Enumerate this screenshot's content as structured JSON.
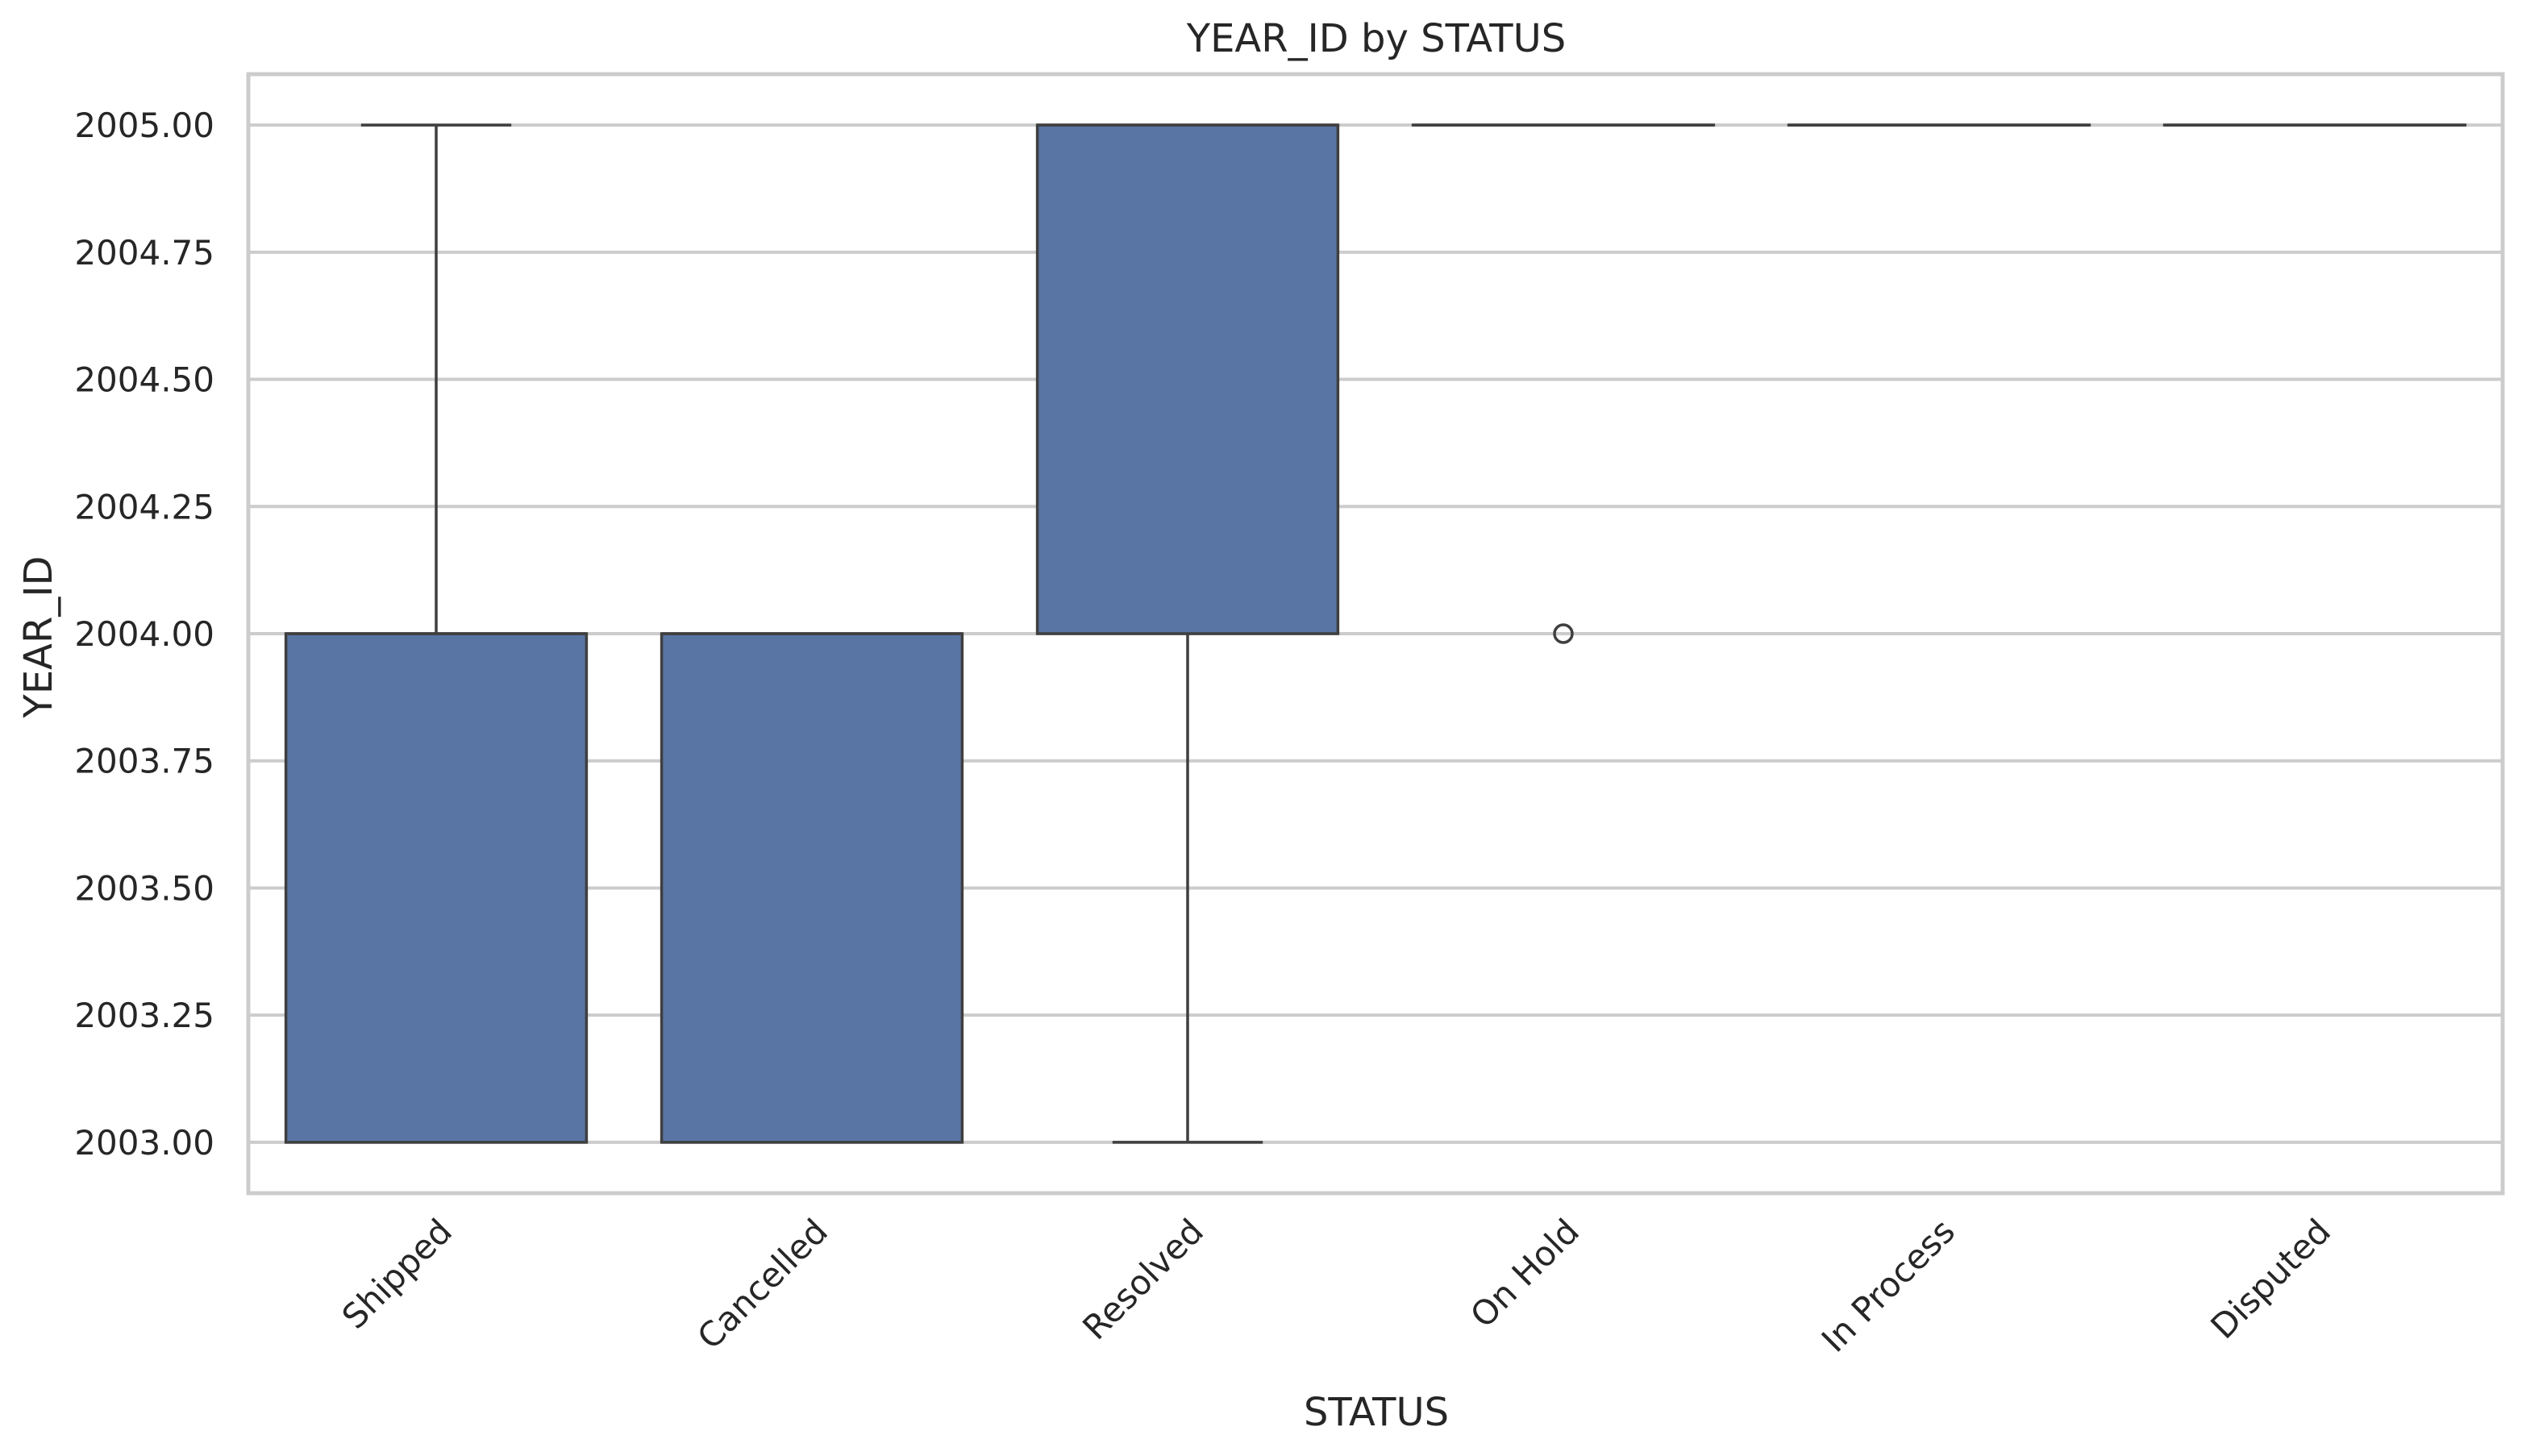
{
  "chart_data": {
    "type": "box",
    "title": "YEAR_ID by STATUS",
    "xlabel": "STATUS",
    "ylabel": "YEAR_ID",
    "ylim": [
      2002.9,
      2005.1
    ],
    "y_ticks": [
      "2003.00",
      "2003.25",
      "2003.50",
      "2003.75",
      "2004.00",
      "2004.25",
      "2004.50",
      "2004.75",
      "2005.00"
    ],
    "grid": "horizontal",
    "box_color": "#5975a4",
    "edge_color": "#3f3f3f",
    "categories": [
      "Shipped",
      "Cancelled",
      "Resolved",
      "On Hold",
      "In Process",
      "Disputed"
    ],
    "boxes": [
      {
        "whisker_low": 2003,
        "q1": 2003,
        "median": 2004,
        "q3": 2004,
        "whisker_high": 2005,
        "outliers": []
      },
      {
        "whisker_low": 2003,
        "q1": 2003,
        "median": 2004,
        "q3": 2004,
        "whisker_high": 2004,
        "outliers": []
      },
      {
        "whisker_low": 2003,
        "q1": 2004,
        "median": 2005,
        "q3": 2005,
        "whisker_high": 2005,
        "outliers": []
      },
      {
        "whisker_low": 2005,
        "q1": 2005,
        "median": 2005,
        "q3": 2005,
        "whisker_high": 2005,
        "outliers": [
          2004
        ]
      },
      {
        "whisker_low": 2005,
        "q1": 2005,
        "median": 2005,
        "q3": 2005,
        "whisker_high": 2005,
        "outliers": []
      },
      {
        "whisker_low": 2005,
        "q1": 2005,
        "median": 2005,
        "q3": 2005,
        "whisker_high": 2005,
        "outliers": []
      }
    ]
  }
}
